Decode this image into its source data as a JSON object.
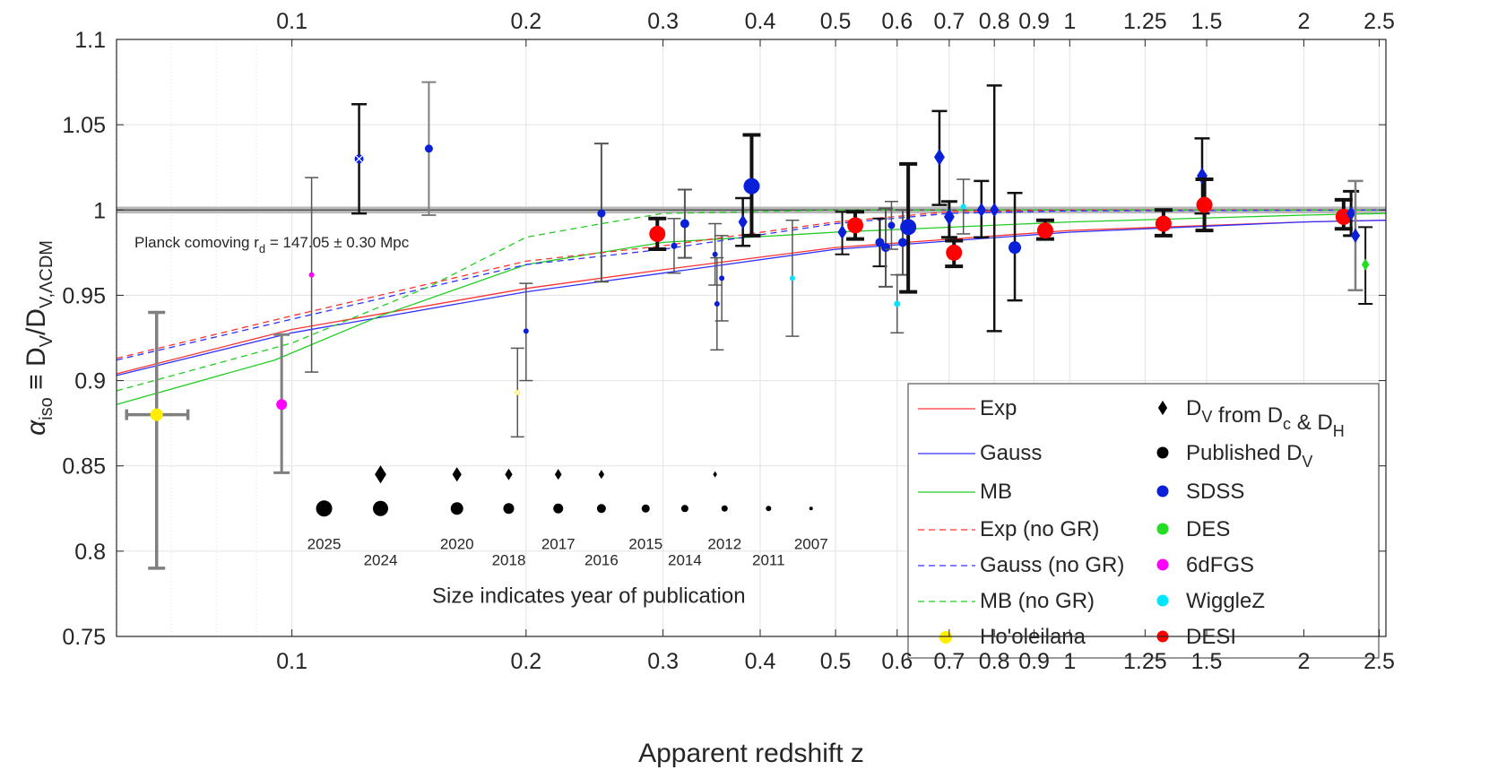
{
  "chart_data": {
    "type": "scatter",
    "xlabel": "Apparent redshift z",
    "ylabel_main": "α",
    "ylabel_main_sub": "iso",
    "ylabel_equiv": "≡ D",
    "ylabel_sub1": "V",
    "ylabel_mid": "/D",
    "ylabel_sub2": "V,ΛCDM",
    "x_scale": "log",
    "xlim": [
      0.0595,
      2.55
    ],
    "ylim": [
      0.75,
      1.1
    ],
    "grid": true,
    "x_ticks": [
      {
        "v": 0.1,
        "label": "0.1"
      },
      {
        "v": 0.2,
        "label": "0.2"
      },
      {
        "v": 0.3,
        "label": "0.3"
      },
      {
        "v": 0.4,
        "label": "0.4"
      },
      {
        "v": 0.5,
        "label": "0.5"
      },
      {
        "v": 0.6,
        "label": "0.6"
      },
      {
        "v": 0.7,
        "label": "0.7"
      },
      {
        "v": 0.8,
        "label": "0.8"
      },
      {
        "v": 0.9,
        "label": "0.9"
      },
      {
        "v": 1,
        "label": "1"
      },
      {
        "v": 1.25,
        "label": "1.25"
      },
      {
        "v": 1.5,
        "label": "1.5"
      },
      {
        "v": 2,
        "label": "2"
      },
      {
        "v": 2.5,
        "label": "2.5"
      }
    ],
    "x_grid_minor": [
      0.06,
      0.07,
      0.08,
      0.09
    ],
    "y_ticks": [
      {
        "v": 0.75,
        "label": "0.75"
      },
      {
        "v": 0.8,
        "label": "0.8"
      },
      {
        "v": 0.85,
        "label": "0.85"
      },
      {
        "v": 0.9,
        "label": "0.9"
      },
      {
        "v": 0.95,
        "label": "0.95"
      },
      {
        "v": 1,
        "label": "1"
      },
      {
        "v": 1.05,
        "label": "1.05"
      },
      {
        "v": 1.1,
        "label": "1.1"
      }
    ],
    "planck_band": [
      0.998,
      1.002
    ],
    "planck_label": "Planck comoving r",
    "planck_label_sub": "d",
    "planck_label_value": " = 147.05 ± 0.30 Mpc",
    "curves": [
      {
        "name": "Exp",
        "color": "#ff3030",
        "dash": false,
        "points": [
          [
            0.0595,
            0.904
          ],
          [
            0.1,
            0.93
          ],
          [
            0.2,
            0.954
          ],
          [
            0.3,
            0.965
          ],
          [
            0.5,
            0.978
          ],
          [
            1,
            0.988
          ],
          [
            2,
            0.993
          ],
          [
            2.55,
            0.994
          ]
        ]
      },
      {
        "name": "Gauss",
        "color": "#3030ff",
        "dash": false,
        "points": [
          [
            0.0595,
            0.903
          ],
          [
            0.1,
            0.928
          ],
          [
            0.2,
            0.952
          ],
          [
            0.3,
            0.963
          ],
          [
            0.5,
            0.977
          ],
          [
            1,
            0.987
          ],
          [
            2,
            0.993
          ],
          [
            2.55,
            0.994
          ]
        ]
      },
      {
        "name": "MB",
        "color": "#22cc22",
        "dash": false,
        "points": [
          [
            0.0595,
            0.886
          ],
          [
            0.095,
            0.912
          ],
          [
            0.13,
            0.938
          ],
          [
            0.2,
            0.968
          ],
          [
            0.3,
            0.981
          ],
          [
            0.5,
            0.987
          ],
          [
            1,
            0.993
          ],
          [
            2,
            0.997
          ],
          [
            2.55,
            0.998
          ]
        ]
      },
      {
        "name": "Exp (no GR)",
        "color": "#ff3030",
        "dash": true,
        "points": [
          [
            0.0595,
            0.913
          ],
          [
            0.1,
            0.938
          ],
          [
            0.2,
            0.97
          ],
          [
            0.3,
            0.979
          ],
          [
            0.5,
            0.993
          ],
          [
            0.7,
            0.999
          ],
          [
            1,
            1.0
          ],
          [
            2.55,
            1.0
          ]
        ]
      },
      {
        "name": "Gauss (no GR)",
        "color": "#3030ff",
        "dash": true,
        "points": [
          [
            0.0595,
            0.912
          ],
          [
            0.1,
            0.936
          ],
          [
            0.2,
            0.968
          ],
          [
            0.3,
            0.977
          ],
          [
            0.5,
            0.992
          ],
          [
            0.7,
            0.998
          ],
          [
            1,
            0.9995
          ],
          [
            2.55,
            1.0
          ]
        ]
      },
      {
        "name": "MB (no GR)",
        "color": "#22cc22",
        "dash": true,
        "points": [
          [
            0.0595,
            0.894
          ],
          [
            0.1,
            0.922
          ],
          [
            0.15,
            0.955
          ],
          [
            0.2,
            0.984
          ],
          [
            0.25,
            0.992
          ],
          [
            0.3,
            0.998
          ],
          [
            0.5,
            1.0
          ],
          [
            2.55,
            1.0
          ]
        ]
      }
    ],
    "points": [
      {
        "z": 0.067,
        "y": 0.88,
        "lo": 0.79,
        "hi": 0.94,
        "xlo": 0.0613,
        "xhi": 0.0735,
        "color": "#ffee00",
        "shape": "circle",
        "r": 7,
        "err": "#7f7f7f",
        "ew": 3.5,
        "survey": "Ho'oleilana"
      },
      {
        "z": 0.097,
        "y": 0.886,
        "lo": 0.846,
        "hi": 0.927,
        "color": "#ff00ff",
        "shape": "circle",
        "r": 6,
        "err": "#7f7f7f",
        "ew": 3,
        "survey": "6dFGS"
      },
      {
        "z": 0.106,
        "y": 0.962,
        "lo": 0.905,
        "hi": 1.019,
        "color": "#ff00ff",
        "shape": "circle",
        "r": 3,
        "err": "#555555",
        "ew": 1.5,
        "survey": "6dFGS"
      },
      {
        "z": 0.122,
        "y": 1.03,
        "lo": 0.998,
        "hi": 1.062,
        "color": "#0a1fd8",
        "shape": "circle",
        "r": 5,
        "err": "#111111",
        "ew": 2.5,
        "survey": "SDSS",
        "cross": true
      },
      {
        "z": 0.15,
        "y": 1.036,
        "lo": 0.997,
        "hi": 1.075,
        "color": "#0a1fd8",
        "shape": "circle",
        "r": 4.5,
        "err": "#7f7f7f",
        "ew": 2,
        "survey": "SDSS"
      },
      {
        "z": 0.195,
        "y": 0.893,
        "lo": 0.867,
        "hi": 0.919,
        "color": "#ffee00",
        "shape": "circle",
        "r": 3,
        "err": "#555555",
        "ew": 1.5,
        "survey": "SDSS",
        "cross": true
      },
      {
        "z": 0.2,
        "y": 0.929,
        "lo": 0.9,
        "hi": 0.957,
        "color": "#0a1fd8",
        "shape": "circle",
        "r": 3,
        "err": "#555555",
        "ew": 1.5,
        "survey": "SDSS"
      },
      {
        "z": 0.25,
        "y": 0.998,
        "lo": 0.958,
        "hi": 1.039,
        "color": "#0a1fd8",
        "shape": "circle",
        "r": 4.5,
        "err": "#555555",
        "ew": 2,
        "survey": "SDSS"
      },
      {
        "z": 0.295,
        "y": 0.986,
        "lo": 0.977,
        "hi": 0.995,
        "color": "#ff0000",
        "shape": "circle",
        "r": 9,
        "err": "#111111",
        "ew": 4,
        "survey": "DESI"
      },
      {
        "z": 0.31,
        "y": 0.979,
        "lo": 0.963,
        "hi": 0.995,
        "color": "#0a1fd8",
        "shape": "circle",
        "r": 3.5,
        "err": "#555555",
        "ew": 1.5,
        "survey": "SDSS"
      },
      {
        "z": 0.32,
        "y": 0.992,
        "lo": 0.972,
        "hi": 1.012,
        "color": "#0a1fd8",
        "shape": "circle",
        "r": 5,
        "err": "#555555",
        "ew": 2,
        "survey": "SDSS"
      },
      {
        "z": 0.35,
        "y": 0.974,
        "lo": 0.956,
        "hi": 0.992,
        "color": "#0a1fd8",
        "shape": "circle",
        "r": 3,
        "err": "#555555",
        "ew": 1.5,
        "survey": "SDSS"
      },
      {
        "z": 0.352,
        "y": 0.945,
        "lo": 0.918,
        "hi": 0.972,
        "color": "#0a1fd8",
        "shape": "circle",
        "r": 3,
        "err": "#555555",
        "ew": 1.5,
        "survey": "SDSS"
      },
      {
        "z": 0.357,
        "y": 0.96,
        "lo": 0.935,
        "hi": 0.985,
        "color": "#0a1fd8",
        "shape": "circle",
        "r": 3,
        "err": "#555555",
        "ew": 1.5,
        "survey": "SDSS"
      },
      {
        "z": 0.38,
        "y": 0.993,
        "lo": 0.979,
        "hi": 1.007,
        "color": "#0a1fd8",
        "shape": "diamond",
        "r": 6,
        "err": "#111111",
        "ew": 2.5,
        "survey": "SDSS"
      },
      {
        "z": 0.39,
        "y": 1.014,
        "lo": 0.985,
        "hi": 1.044,
        "color": "#0a1fd8",
        "shape": "circle",
        "r": 9,
        "err": "#111111",
        "ew": 4,
        "survey": "SDSS"
      },
      {
        "z": 0.44,
        "y": 0.96,
        "lo": 0.926,
        "hi": 0.994,
        "color": "#00e5ff",
        "shape": "circle",
        "r": 3,
        "err": "#555555",
        "ew": 1.5,
        "survey": "WiggleZ"
      },
      {
        "z": 0.51,
        "y": 0.987,
        "lo": 0.974,
        "hi": 0.999,
        "color": "#0a1fd8",
        "shape": "diamond",
        "r": 6,
        "err": "#111111",
        "ew": 2,
        "survey": "SDSS"
      },
      {
        "z": 0.53,
        "y": 0.991,
        "lo": 0.983,
        "hi": 0.999,
        "color": "#ff0000",
        "shape": "circle",
        "r": 9,
        "err": "#111111",
        "ew": 4,
        "survey": "DESI"
      },
      {
        "z": 0.57,
        "y": 0.981,
        "lo": 0.967,
        "hi": 0.995,
        "color": "#0a1fd8",
        "shape": "circle",
        "r": 5,
        "err": "#111111",
        "ew": 2,
        "survey": "SDSS"
      },
      {
        "z": 0.58,
        "y": 0.978,
        "lo": 0.955,
        "hi": 1.001,
        "color": "#0a1fd8",
        "shape": "circle",
        "r": 5,
        "err": "#555555",
        "ew": 2,
        "survey": "SDSS"
      },
      {
        "z": 0.59,
        "y": 0.991,
        "lo": 0.977,
        "hi": 1.005,
        "color": "#0a1fd8",
        "shape": "circle",
        "r": 4,
        "err": "#555555",
        "ew": 1.5,
        "survey": "SDSS"
      },
      {
        "z": 0.6,
        "y": 0.945,
        "lo": 0.928,
        "hi": 0.962,
        "color": "#00e5ff",
        "shape": "circle",
        "r": 3.5,
        "err": "#555555",
        "ew": 1.5,
        "survey": "WiggleZ"
      },
      {
        "z": 0.61,
        "y": 0.981,
        "lo": 0.962,
        "hi": 1.0,
        "color": "#0a1fd8",
        "shape": "circle",
        "r": 5,
        "err": "#555555",
        "ew": 2,
        "survey": "SDSS"
      },
      {
        "z": 0.62,
        "y": 0.99,
        "lo": 0.952,
        "hi": 1.027,
        "color": "#0a1fd8",
        "shape": "circle",
        "r": 9,
        "err": "#111111",
        "ew": 4,
        "survey": "SDSS"
      },
      {
        "z": 0.68,
        "y": 1.031,
        "lo": 1.003,
        "hi": 1.058,
        "color": "#0a1fd8",
        "shape": "diamond",
        "r": 7,
        "err": "#111111",
        "ew": 2.5,
        "survey": "SDSS"
      },
      {
        "z": 0.7,
        "y": 0.996,
        "lo": 0.984,
        "hi": 1.005,
        "color": "#0a1fd8",
        "shape": "diamond",
        "r": 7,
        "err": "#111111",
        "ew": 3,
        "survey": "SDSS"
      },
      {
        "z": 0.71,
        "y": 0.975,
        "lo": 0.967,
        "hi": 0.982,
        "color": "#ff0000",
        "shape": "circle",
        "r": 9,
        "err": "#111111",
        "ew": 4,
        "survey": "DESI"
      },
      {
        "z": 0.73,
        "y": 1.002,
        "lo": 0.986,
        "hi": 1.018,
        "color": "#00e5ff",
        "shape": "circle",
        "r": 3,
        "err": "#555555",
        "ew": 1.5,
        "survey": "WiggleZ"
      },
      {
        "z": 0.77,
        "y": 1.0,
        "lo": 0.984,
        "hi": 1.017,
        "color": "#0a1fd8",
        "shape": "diamond",
        "r": 6,
        "err": "#111111",
        "ew": 2.5,
        "survey": "SDSS"
      },
      {
        "z": 0.8,
        "y": 1.0,
        "lo": 0.929,
        "hi": 1.073,
        "color": "#0a1fd8",
        "shape": "diamond",
        "r": 6,
        "err": "#111111",
        "ew": 2.5,
        "survey": "SDSS"
      },
      {
        "z": 0.85,
        "y": 0.978,
        "lo": 0.947,
        "hi": 1.01,
        "color": "#0a1fd8",
        "shape": "circle",
        "r": 7,
        "err": "#111111",
        "ew": 2.5,
        "survey": "SDSS"
      },
      {
        "z": 0.93,
        "y": 0.988,
        "lo": 0.983,
        "hi": 0.994,
        "color": "#ff0000",
        "shape": "circle",
        "r": 9,
        "err": "#111111",
        "ew": 4,
        "survey": "DESI"
      },
      {
        "z": 1.32,
        "y": 0.992,
        "lo": 0.985,
        "hi": 1.0,
        "color": "#ff0000",
        "shape": "circle",
        "r": 9,
        "err": "#111111",
        "ew": 4,
        "survey": "DESI"
      },
      {
        "z": 1.48,
        "y": 1.02,
        "lo": 0.998,
        "hi": 1.042,
        "color": "#0a1fd8",
        "shape": "diamond",
        "r": 7,
        "err": "#111111",
        "ew": 2.5,
        "survey": "SDSS"
      },
      {
        "z": 1.49,
        "y": 1.003,
        "lo": 0.988,
        "hi": 1.018,
        "color": "#ff0000",
        "shape": "circle",
        "r": 9,
        "err": "#111111",
        "ew": 4,
        "survey": "DESI"
      },
      {
        "z": 2.25,
        "y": 0.996,
        "lo": 0.989,
        "hi": 1.006,
        "color": "#ff0000",
        "shape": "circle",
        "r": 9,
        "err": "#111111",
        "ew": 4,
        "survey": "DESI"
      },
      {
        "z": 2.3,
        "y": 0.998,
        "lo": 0.985,
        "hi": 1.011,
        "color": "#0a1fd8",
        "shape": "diamond",
        "r": 6,
        "err": "#111111",
        "ew": 3,
        "survey": "SDSS"
      },
      {
        "z": 2.33,
        "y": 0.985,
        "lo": 0.953,
        "hi": 1.017,
        "color": "#0a1fd8",
        "shape": "diamond",
        "r": 6,
        "err": "#7f7f7f",
        "ew": 2.5,
        "survey": "SDSS"
      },
      {
        "z": 2.4,
        "y": 0.968,
        "lo": 0.945,
        "hi": 0.99,
        "color": "#22dd22",
        "shape": "diamond",
        "r": 5,
        "err": "#111111",
        "ew": 2,
        "survey": "DES"
      }
    ],
    "year_key_title": "Size indicates year of publication",
    "year_key_diamonds": [
      {
        "z": 0.13,
        "r": 10
      },
      {
        "z": 0.163,
        "r": 8
      },
      {
        "z": 0.19,
        "r": 6.5
      },
      {
        "z": 0.22,
        "r": 6
      },
      {
        "z": 0.25,
        "r": 5
      },
      {
        "z": 0.35,
        "r": 3.5
      }
    ],
    "year_key_circles": [
      {
        "z": 0.11,
        "r": 9,
        "year": "2025",
        "row": 1
      },
      {
        "z": 0.13,
        "r": 8.5,
        "year": "2024",
        "row": 2
      },
      {
        "z": 0.163,
        "r": 7,
        "year": "2020",
        "row": 1
      },
      {
        "z": 0.19,
        "r": 6,
        "year": "2018",
        "row": 2
      },
      {
        "z": 0.22,
        "r": 5.5,
        "year": "2017",
        "row": 1
      },
      {
        "z": 0.25,
        "r": 5,
        "year": "2016",
        "row": 2
      },
      {
        "z": 0.285,
        "r": 4.5,
        "year": "2015",
        "row": 1
      },
      {
        "z": 0.32,
        "r": 4,
        "year": "2014",
        "row": 2
      },
      {
        "z": 0.36,
        "r": 3.5,
        "year": "2012",
        "row": 1
      },
      {
        "z": 0.41,
        "r": 3,
        "year": "2011",
        "row": 2
      },
      {
        "z": 0.465,
        "r": 2,
        "year": "2007",
        "row": 1
      }
    ],
    "legend_left": [
      {
        "label": "Exp",
        "color": "#ff3030",
        "dash": false
      },
      {
        "label": "Gauss",
        "color": "#3030ff",
        "dash": false
      },
      {
        "label": "MB",
        "color": "#22cc22",
        "dash": false
      },
      {
        "label": "Exp (no GR)",
        "color": "#ff3030",
        "dash": true
      },
      {
        "label": "Gauss (no GR)",
        "color": "#3030ff",
        "dash": true
      },
      {
        "label": "MB (no GR)",
        "color": "#22cc22",
        "dash": true
      },
      {
        "label": "Ho'oleilana",
        "color": "#ffee00",
        "marker": "circle"
      }
    ],
    "legend_right": [
      {
        "label": "D",
        "sub": "V",
        "tail": " from  D",
        "sub2": "c",
        "tail2": " & D",
        "sub3": "H",
        "color": "#000000",
        "marker": "diamond"
      },
      {
        "label": "Published D",
        "sub": "V",
        "color": "#000000",
        "marker": "circle"
      },
      {
        "label": "SDSS",
        "color": "#0a1fd8",
        "marker": "circle"
      },
      {
        "label": "DES",
        "color": "#22dd22",
        "marker": "circle"
      },
      {
        "label": "6dFGS",
        "color": "#ff00ff",
        "marker": "circle"
      },
      {
        "label": "WiggleZ",
        "color": "#00e5ff",
        "marker": "circle"
      },
      {
        "label": "DESI",
        "color": "#ff0000",
        "marker": "circle"
      }
    ]
  }
}
